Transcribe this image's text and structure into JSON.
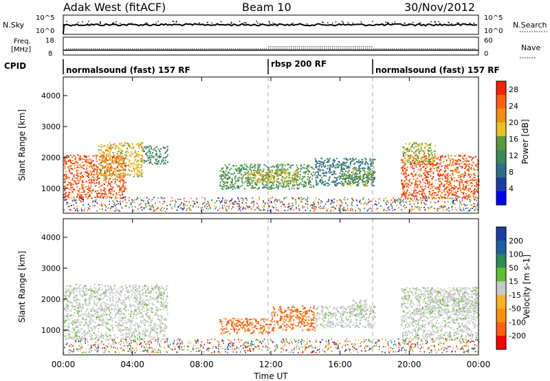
{
  "header": {
    "station": "Adak West (fitACF)",
    "beam": "Beam 10",
    "date": "30/Nov/2012"
  },
  "nsky_panel": {
    "left_label": "N.Sky",
    "left_ticks": [
      "10^5",
      "10^0"
    ],
    "right_ticks": [
      "10^5",
      "10^0"
    ],
    "right_label": "N.Search"
  },
  "freq_panel": {
    "left_label_line1": "Freq.",
    "left_label_line2": "[MHz]",
    "left_ticks": [
      "18",
      "8"
    ],
    "right_ticks": [
      "60",
      "0"
    ],
    "right_label": "Nave"
  },
  "cpid": {
    "label": "CPID",
    "segments": [
      {
        "name": "normalsound (fast) 157 RF",
        "start_h": 0,
        "end_h": 12
      },
      {
        "name": "rbsp 200 RF",
        "start_h": 12,
        "end_h": 18
      },
      {
        "name": "normalsound (fast) 157 RF",
        "start_h": 18,
        "end_h": 24
      }
    ]
  },
  "colors": {
    "ground_scatter": "#c8c8c8",
    "power": [
      "#0000ff",
      "#1e3ca8",
      "#2e6e8a",
      "#3a8a5a",
      "#5a9a3a",
      "#e8c020",
      "#f09010",
      "#ff6010",
      "#ff2000"
    ],
    "velocity": [
      "#ff0000",
      "#ff6010",
      "#ff9010",
      "#ffb020",
      "#c8c8c8",
      "#60c030",
      "#2e8a5a",
      "#1e60a0",
      "#1e3ca8"
    ]
  },
  "chart_data": [
    {
      "type": "heatmap",
      "panel": "power",
      "xlabel": "",
      "ylabel": "Slant Range [km]",
      "xlim_hours": [
        0,
        24
      ],
      "ylim": [
        200,
        4600
      ],
      "yticks": [
        1000,
        2000,
        3000,
        4000
      ],
      "colorbar": {
        "label": "Power [dB]",
        "ticks": [
          4,
          8,
          12,
          16,
          20,
          24,
          28
        ],
        "range": [
          0,
          30
        ]
      },
      "regions": [
        {
          "h0": 0.0,
          "h1": 3.6,
          "r0": 700,
          "r1": 2100,
          "level": 27
        },
        {
          "h0": 2.0,
          "h1": 4.6,
          "r0": 1400,
          "r1": 2500,
          "level": 19
        },
        {
          "h0": 4.6,
          "h1": 6.0,
          "r0": 1800,
          "r1": 2400,
          "level": 11
        },
        {
          "h0": 9.0,
          "h1": 14.5,
          "r0": 1000,
          "r1": 1800,
          "level": 13
        },
        {
          "h0": 10.5,
          "h1": 13.5,
          "r0": 1200,
          "r1": 1600,
          "level": 19
        },
        {
          "h0": 14.5,
          "h1": 18.0,
          "r0": 1100,
          "r1": 2000,
          "level": 9
        },
        {
          "h0": 16.0,
          "h1": 18.0,
          "r0": 1100,
          "r1": 1700,
          "level": 15
        },
        {
          "h0": 19.5,
          "h1": 24.0,
          "r0": 700,
          "r1": 2100,
          "level": 27
        },
        {
          "h0": 19.6,
          "h1": 21.5,
          "r0": 1800,
          "r1": 2500,
          "level": 17
        }
      ]
    },
    {
      "type": "heatmap",
      "panel": "velocity",
      "xlabel": "Time UT",
      "ylabel": "Slant Range [km]",
      "xlim_hours": [
        0,
        24
      ],
      "xticks": [
        "00:00",
        "04:00",
        "08:00",
        "12:00",
        "16:00",
        "20:00",
        "00:00"
      ],
      "ylim": [
        200,
        4600
      ],
      "yticks": [
        1000,
        2000,
        3000,
        4000
      ],
      "colorbar": {
        "label": "Velocity [m s-1]",
        "ticks": [
          -200,
          -100,
          -50,
          -15,
          15,
          50,
          100,
          200
        ]
      },
      "regions": [
        {
          "h0": 0.0,
          "h1": 6.0,
          "r0": 700,
          "r1": 2500,
          "value": 0
        },
        {
          "h0": 9.0,
          "h1": 12.0,
          "r0": 900,
          "r1": 1400,
          "value": -60
        },
        {
          "h0": 12.0,
          "h1": 14.5,
          "r0": 1000,
          "r1": 1800,
          "value": -60
        },
        {
          "h0": 14.5,
          "h1": 18.0,
          "r0": 1100,
          "r1": 1800,
          "value": 0
        },
        {
          "h0": 16.5,
          "h1": 17.5,
          "r0": 1500,
          "r1": 2000,
          "value": 30
        },
        {
          "h0": 19.5,
          "h1": 24.0,
          "r0": 700,
          "r1": 2400,
          "value": 0
        },
        {
          "h0": 21.0,
          "h1": 24.0,
          "r0": 1600,
          "r1": 2300,
          "value": 30
        }
      ]
    }
  ]
}
